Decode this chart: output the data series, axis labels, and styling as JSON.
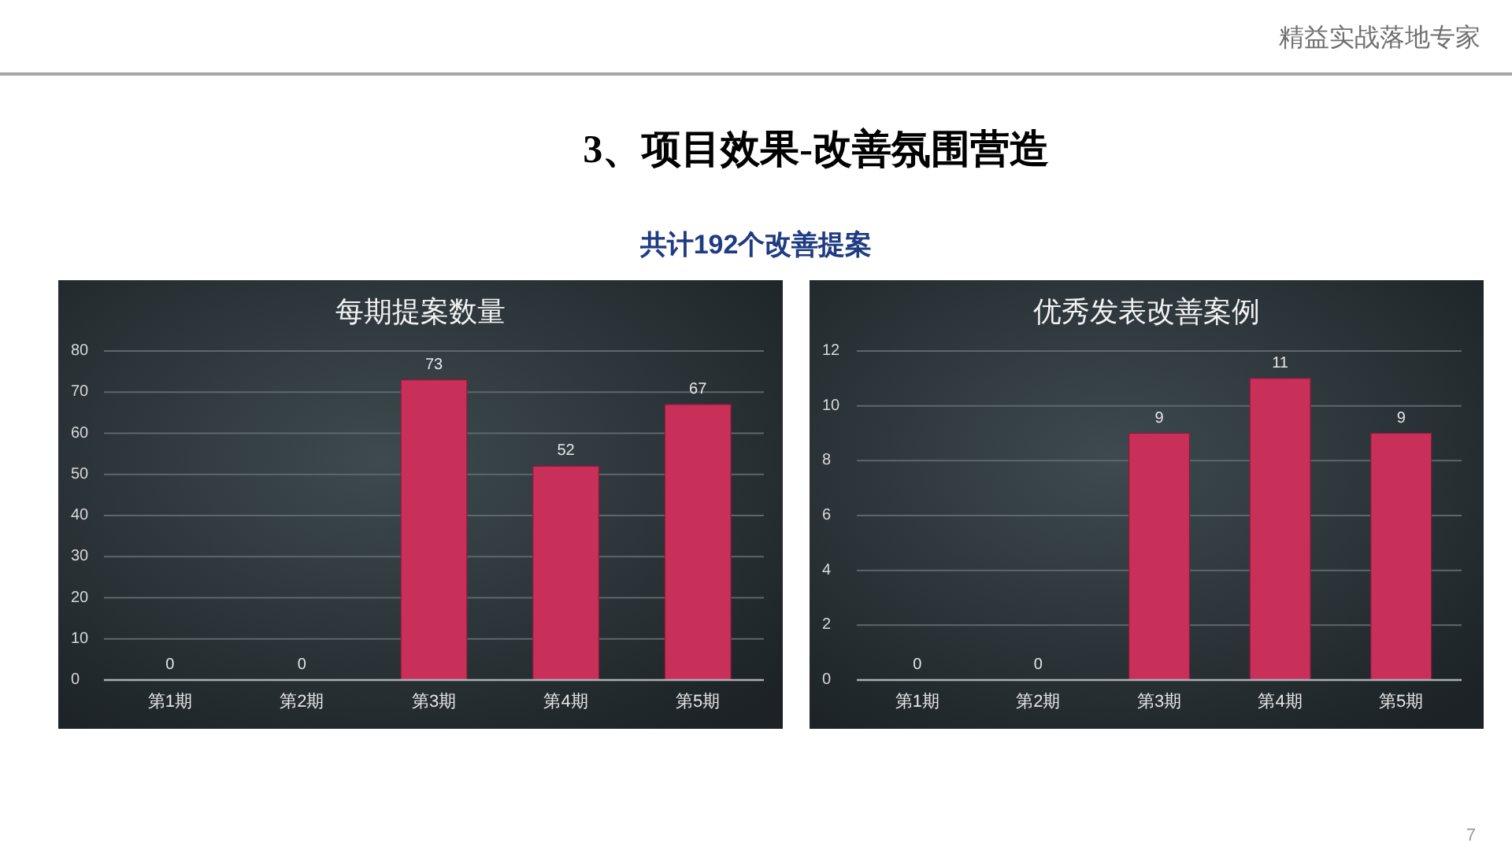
{
  "chart_data": [
    {
      "type": "other",
      "title": "3、项目效果-改善氛围营造",
      "subtitle": "共计192个改善提案",
      "annotations": [
        "精益实战落地专家",
        "7"
      ]
    },
    {
      "type": "bar",
      "title": "每期提案数量",
      "categories": [
        "第1期",
        "第2期",
        "第3期",
        "第4期",
        "第5期"
      ],
      "values": [
        0,
        0,
        73,
        52,
        67
      ],
      "color": "#c8305a",
      "ylim": [
        0,
        80
      ],
      "yticks": [
        0,
        10,
        20,
        30,
        40,
        50,
        60,
        70,
        80
      ],
      "grid": "y",
      "data_labels": true
    },
    {
      "type": "bar",
      "title": "优秀发表改善案例",
      "categories": [
        "第1期",
        "第2期",
        "第3期",
        "第4期",
        "第5期"
      ],
      "values": [
        0,
        0,
        9,
        11,
        9
      ],
      "color": "#c8305a",
      "ylim": [
        0,
        12
      ],
      "yticks": [
        0,
        2,
        4,
        6,
        8,
        10,
        12
      ],
      "grid": "y",
      "data_labels": true
    }
  ]
}
